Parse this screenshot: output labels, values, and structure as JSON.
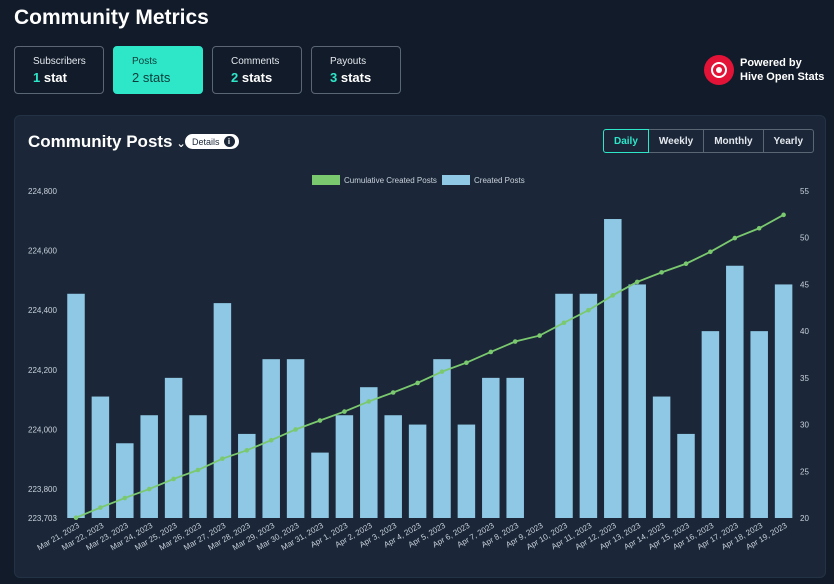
{
  "page": {
    "title": "Community Metrics"
  },
  "stats": [
    {
      "label": "Subscribers",
      "count": "1",
      "unit": "stat",
      "active": false
    },
    {
      "label": "Posts",
      "count": "2",
      "unit": "stats",
      "active": true
    },
    {
      "label": "Comments",
      "count": "2",
      "unit": "stats",
      "active": false
    },
    {
      "label": "Payouts",
      "count": "3",
      "unit": "stats",
      "active": false
    }
  ],
  "powered": {
    "line1": "Powered by",
    "line2": "Hive Open Stats"
  },
  "panel": {
    "title": "Community Posts",
    "details_label": "Details",
    "tabs": [
      {
        "label": "Daily",
        "active": true
      },
      {
        "label": "Weekly",
        "active": false
      },
      {
        "label": "Monthly",
        "active": false
      },
      {
        "label": "Yearly",
        "active": false
      }
    ]
  },
  "colors": {
    "accent": "#2ee6c8",
    "bar": "#8ec8e4",
    "line": "#7bc96f",
    "panel": "#1b2738",
    "background": "#111b29"
  },
  "chart_data": {
    "type": "bar",
    "categories": [
      "Mar 21, 2023",
      "Mar 22, 2023",
      "Mar 23, 2023",
      "Mar 24, 2023",
      "Mar 25, 2023",
      "Mar 26, 2023",
      "Mar 27, 2023",
      "Mar 28, 2023",
      "Mar 29, 2023",
      "Mar 30, 2023",
      "Mar 31, 2023",
      "Apr 1, 2023",
      "Apr 2, 2023",
      "Apr 3, 2023",
      "Apr 4, 2023",
      "Apr 5, 2023",
      "Apr 6, 2023",
      "Apr 7, 2023",
      "Apr 8, 2023",
      "Apr 9, 2023",
      "Apr 10, 2023",
      "Apr 11, 2023",
      "Apr 12, 2023",
      "Apr 13, 2023",
      "Apr 14, 2023",
      "Apr 15, 2023",
      "Apr 16, 2023",
      "Apr 17, 2023",
      "Apr 18, 2023",
      "Apr 19, 2023"
    ],
    "legend": [
      "Cumulative Created Posts",
      "Created Posts"
    ],
    "series": [
      {
        "name": "Created Posts",
        "type": "bar",
        "axis": "right",
        "values": [
          44,
          33,
          28,
          31,
          35,
          31,
          43,
          29,
          37,
          37,
          27,
          31,
          34,
          31,
          30,
          37,
          30,
          35,
          35,
          null,
          44,
          44,
          52,
          45,
          33,
          29,
          40,
          47,
          40,
          45
        ]
      },
      {
        "name": "Cumulative Created Posts",
        "type": "line",
        "axis": "left",
        "values": [
          223704,
          223738,
          223770,
          223800,
          223834,
          223864,
          223902,
          223930,
          223964,
          224000,
          224030,
          224060,
          224094,
          224124,
          224156,
          224194,
          224224,
          224260,
          224295,
          224315,
          224358,
          224400,
          224450,
          224495,
          224527,
          224556,
          224596,
          224642,
          224675,
          224720
        ]
      }
    ],
    "y_left": {
      "min": 223703,
      "max": 224800,
      "ticks": [
        "223,703",
        "223,800",
        "224,000",
        "224,200",
        "224,400",
        "224,600",
        "224,800"
      ],
      "tick_values": [
        223703,
        223800,
        224000,
        224200,
        224400,
        224600,
        224800
      ]
    },
    "y_right": {
      "min": 20,
      "max": 55,
      "ticks": [
        "20",
        "25",
        "30",
        "35",
        "40",
        "45",
        "50",
        "55"
      ],
      "tick_values": [
        20,
        25,
        30,
        35,
        40,
        45,
        50,
        55
      ]
    },
    "legend_position": "top-center",
    "grid": false
  }
}
